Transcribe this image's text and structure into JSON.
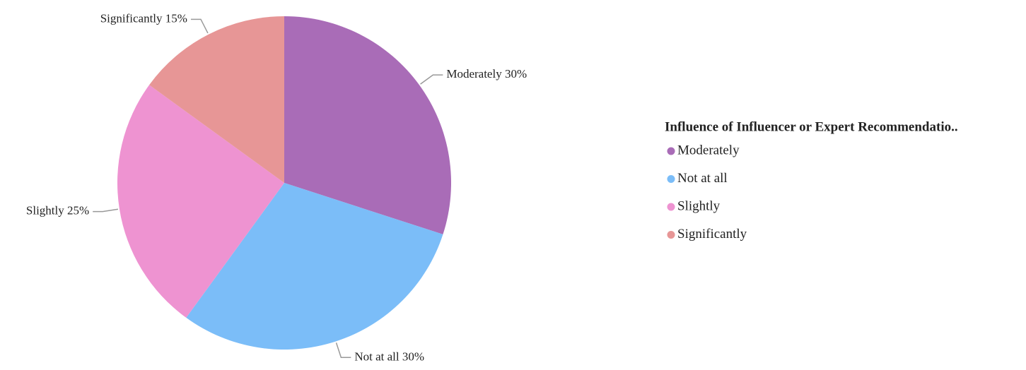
{
  "chart_data": {
    "type": "pie",
    "categories": [
      "Moderately",
      "Not at all",
      "Slightly",
      "Significantly"
    ],
    "values": [
      30,
      30,
      25,
      15
    ],
    "value_labels": [
      "30%",
      "30%",
      "25%",
      "15%"
    ],
    "colors": [
      "#a96cb7",
      "#7bbdf8",
      "#ee93d1",
      "#e79696"
    ],
    "legend_title": "Influence of Influencer or Expert Recommendatio..",
    "legend": "right"
  }
}
